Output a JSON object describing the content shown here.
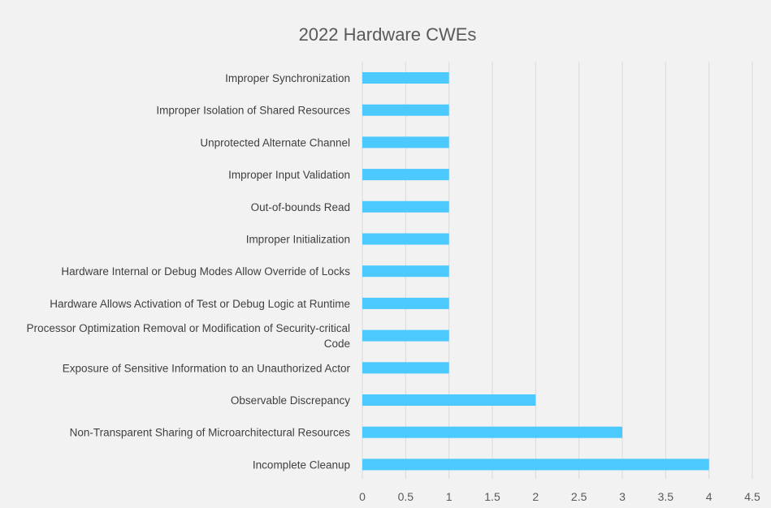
{
  "chart_data": {
    "type": "bar",
    "orientation": "horizontal",
    "title": "2022 Hardware CWEs",
    "xlabel": "",
    "ylabel": "",
    "xlim": [
      0,
      4.5
    ],
    "xticks": [
      "0",
      "0.5",
      "1",
      "1.5",
      "2",
      "2.5",
      "3",
      "3.5",
      "4",
      "4.5"
    ],
    "grid": "vertical",
    "legend": "none",
    "bar_color": "#4cc9ff",
    "categories": [
      "Improper Synchronization",
      "Improper Isolation of Shared Resources",
      "Unprotected Alternate Channel",
      "Improper Input Validation",
      "Out-of-bounds Read",
      "Improper Initialization",
      "Hardware Internal or Debug Modes Allow Override of Locks",
      "Hardware Allows Activation of Test or Debug Logic at Runtime",
      "Processor Optimization Removal or Modification of Security-critical Code",
      "Exposure of Sensitive Information to an Unauthorized Actor",
      "Observable Discrepancy",
      "Non-Transparent Sharing of Microarchitectural Resources",
      "Incomplete Cleanup"
    ],
    "values": [
      1,
      1,
      1,
      1,
      1,
      1,
      1,
      1,
      1,
      1,
      2,
      3,
      4
    ]
  }
}
